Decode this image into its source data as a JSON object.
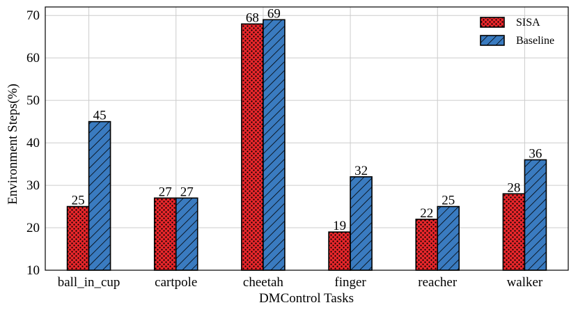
{
  "chart_data": {
    "type": "bar",
    "title": "",
    "xlabel": "DMControl Tasks",
    "ylabel": "Environment Steps(%)",
    "ylim": [
      10,
      72
    ],
    "yticks": [
      10,
      20,
      30,
      40,
      50,
      60,
      70
    ],
    "grid": true,
    "legend_position": "top-right",
    "categories": [
      "ball_in_cup",
      "cartpole",
      "cheetah",
      "finger",
      "reacher",
      "walker"
    ],
    "series": [
      {
        "name": "SISA",
        "values": [
          25,
          27,
          68,
          19,
          22,
          28
        ],
        "color": "#e8262a",
        "pattern": "dots"
      },
      {
        "name": "Baseline",
        "values": [
          45,
          27,
          69,
          32,
          25,
          36
        ],
        "color": "#3a7bc0",
        "pattern": "diagonal-hatch"
      }
    ]
  }
}
